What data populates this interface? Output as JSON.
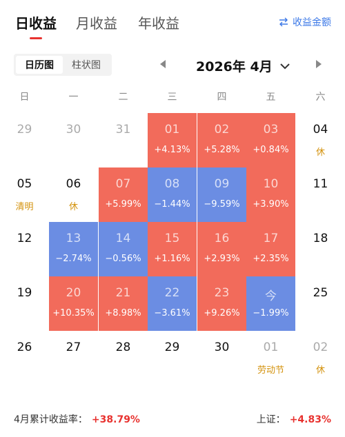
{
  "tabs": [
    {
      "label": "日收益",
      "active": true
    },
    {
      "label": "月收益",
      "active": false
    },
    {
      "label": "年收益",
      "active": false
    }
  ],
  "switch_label": "收益金额",
  "view_toggle": [
    {
      "label": "日历图",
      "active": true
    },
    {
      "label": "柱状图",
      "active": false
    }
  ],
  "month": "2026年 4月",
  "weekdays": [
    "日",
    "一",
    "二",
    "三",
    "四",
    "五",
    "六"
  ],
  "colors": {
    "gain": "#f26b5b",
    "loss": "#6b8de3",
    "holiday": "#d4930f",
    "accent": "#e8322f",
    "link": "#3b78e7"
  },
  "weeks": [
    [
      {
        "day": "29",
        "state": "muted"
      },
      {
        "day": "30",
        "state": "muted"
      },
      {
        "day": "31",
        "state": "muted"
      },
      {
        "day": "01",
        "value": "+4.13%",
        "state": "gain"
      },
      {
        "day": "02",
        "value": "+5.28%",
        "state": "gain"
      },
      {
        "day": "03",
        "value": "+0.84%",
        "state": "gain"
      },
      {
        "day": "04",
        "note": "休",
        "state": "plain"
      }
    ],
    [
      {
        "day": "05",
        "note": "清明",
        "state": "plain"
      },
      {
        "day": "06",
        "note": "休",
        "state": "plain"
      },
      {
        "day": "07",
        "value": "+5.99%",
        "state": "gain"
      },
      {
        "day": "08",
        "value": "−1.44%",
        "state": "loss"
      },
      {
        "day": "09",
        "value": "−9.59%",
        "state": "loss"
      },
      {
        "day": "10",
        "value": "+3.90%",
        "state": "gain"
      },
      {
        "day": "11",
        "state": "plain"
      }
    ],
    [
      {
        "day": "12",
        "state": "plain"
      },
      {
        "day": "13",
        "value": "−2.74%",
        "state": "loss"
      },
      {
        "day": "14",
        "value": "−0.56%",
        "state": "loss"
      },
      {
        "day": "15",
        "value": "+1.16%",
        "state": "gain"
      },
      {
        "day": "16",
        "value": "+2.93%",
        "state": "gain"
      },
      {
        "day": "17",
        "value": "+2.35%",
        "state": "gain"
      },
      {
        "day": "18",
        "state": "plain"
      }
    ],
    [
      {
        "day": "19",
        "state": "plain"
      },
      {
        "day": "20",
        "value": "+10.35%",
        "state": "gain"
      },
      {
        "day": "21",
        "value": "+8.98%",
        "state": "gain"
      },
      {
        "day": "22",
        "value": "−3.61%",
        "state": "loss"
      },
      {
        "day": "23",
        "value": "+9.26%",
        "state": "gain"
      },
      {
        "day": "今",
        "value": "−1.99%",
        "state": "loss"
      },
      {
        "day": "25",
        "state": "plain"
      }
    ],
    [
      {
        "day": "26",
        "state": "plain"
      },
      {
        "day": "27",
        "state": "plain"
      },
      {
        "day": "28",
        "state": "plain"
      },
      {
        "day": "29",
        "state": "plain"
      },
      {
        "day": "30",
        "state": "plain"
      },
      {
        "day": "01",
        "note": "劳动节",
        "state": "muted"
      },
      {
        "day": "02",
        "note": "休",
        "state": "muted"
      }
    ]
  ],
  "footer": {
    "cumulative_label": "4月累计收益率：",
    "cumulative_value": "+38.79%",
    "index_label": "上证：",
    "index_value": "+4.83%"
  }
}
